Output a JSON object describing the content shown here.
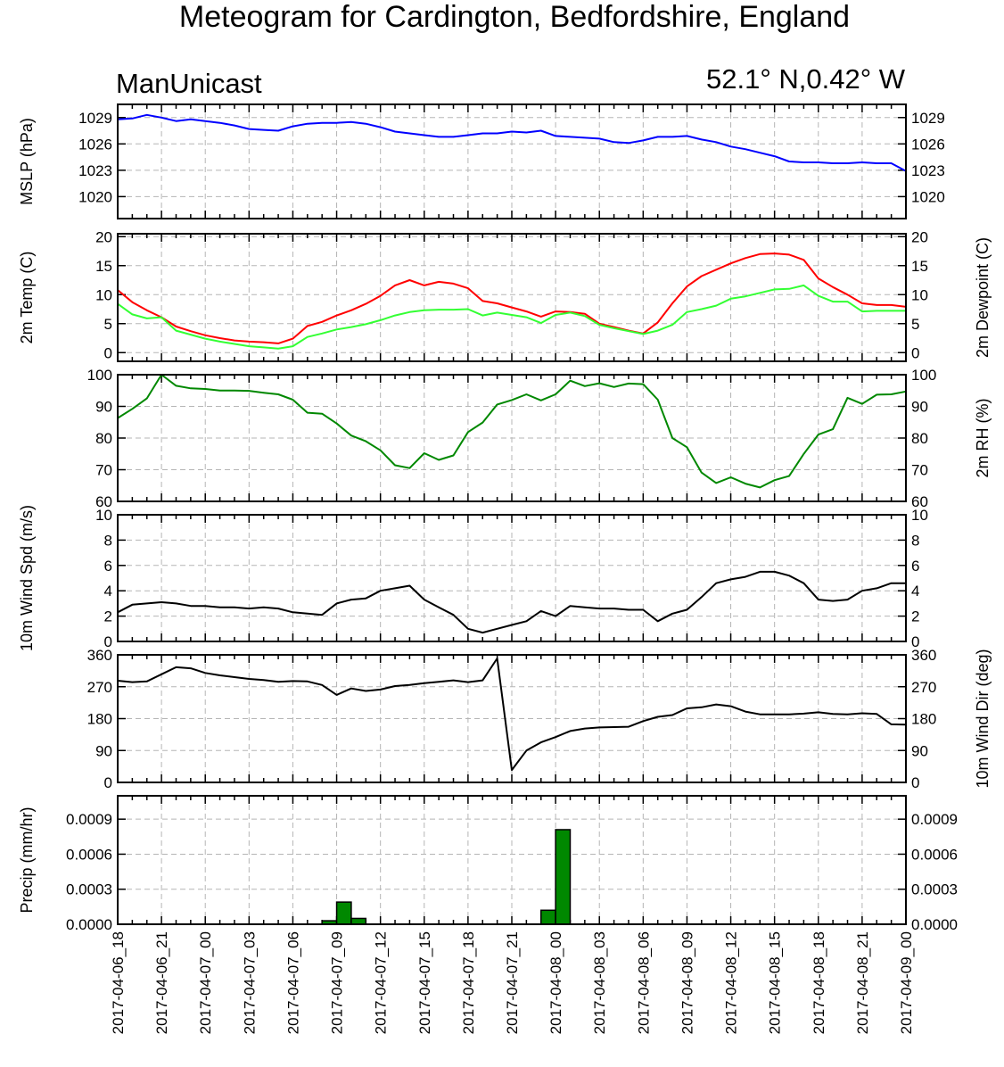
{
  "title": "Meteogram for Cardington, Bedfordshire, England",
  "model": "ManUnicast",
  "location": "52.1° N,0.42° W",
  "chart_data": {
    "type": "line",
    "x_tick_labels": [
      "2017-04-06_18",
      "2017-04-06_21",
      "2017-04-07_00",
      "2017-04-07_03",
      "2017-04-07_06",
      "2017-04-07_09",
      "2017-04-07_12",
      "2017-04-07_15",
      "2017-04-07_18",
      "2017-04-07_21",
      "2017-04-08_00",
      "2017-04-08_03",
      "2017-04-08_06",
      "2017-04-08_09",
      "2017-04-08_12",
      "2017-04-08_15",
      "2017-04-08_18",
      "2017-04-08_21",
      "2017-04-09_00"
    ],
    "x_hours": [
      0,
      1,
      2,
      3,
      4,
      5,
      6,
      7,
      8,
      9,
      10,
      11,
      12,
      13,
      14,
      15,
      16,
      17,
      18,
      19,
      20,
      21,
      22,
      23,
      24,
      25,
      26,
      27,
      28,
      29,
      30,
      31,
      32,
      33,
      34,
      35,
      36,
      37,
      38,
      39,
      40,
      41,
      42,
      43,
      44,
      45,
      46,
      47,
      48,
      49,
      50,
      51,
      52,
      53,
      54
    ],
    "panels": [
      {
        "id": "mslp",
        "type": "line",
        "ylabel_left": "MSLP (hPa)",
        "ylabel_right": "",
        "ylim": [
          1017.5,
          1030.5
        ],
        "yticks": [
          1020,
          1023,
          1026,
          1029
        ],
        "ytick_labels": [
          "1020",
          "1023",
          "1026",
          "1029"
        ],
        "ytick_labels_right": [
          "1020",
          "1023",
          "1026",
          "1029"
        ],
        "series": [
          {
            "color": "#0000ff",
            "values": [
              1028.8,
              1028.9,
              1029.3,
              1029.0,
              1028.6,
              1028.8,
              1028.6,
              1028.4,
              1028.1,
              1027.7,
              1027.6,
              1027.5,
              1028.0,
              1028.3,
              1028.4,
              1028.4,
              1028.5,
              1028.3,
              1027.9,
              1027.4,
              1027.2,
              1027.0,
              1026.8,
              1026.8,
              1027.0,
              1027.2,
              1027.2,
              1027.4,
              1027.3,
              1027.5,
              1026.9,
              1026.8,
              1026.7,
              1026.6,
              1026.2,
              1026.1,
              1026.4,
              1026.8,
              1026.8,
              1026.9,
              1026.5,
              1026.2,
              1025.7,
              1025.4,
              1025.0,
              1024.6,
              1024.0,
              1023.9,
              1023.9,
              1023.8,
              1023.8,
              1023.9,
              1023.8,
              1023.8,
              1022.9
            ]
          }
        ]
      },
      {
        "id": "temp",
        "type": "line",
        "ylabel_left": "2m Temp (C)",
        "ylabel_right": "2m Dewpoint (C)",
        "ylim": [
          -1.5,
          20.5
        ],
        "yticks": [
          0,
          5,
          10,
          15,
          20
        ],
        "ytick_labels": [
          "0",
          "5",
          "10",
          "15",
          "20"
        ],
        "ytick_labels_right": [
          "0",
          "5",
          "10",
          "15",
          "20"
        ],
        "series": [
          {
            "color": "#ff0000",
            "values": [
              10.8,
              8.7,
              7.3,
              6.1,
              4.5,
              3.7,
              3.0,
              2.5,
              2.1,
              1.9,
              1.8,
              1.6,
              2.4,
              4.6,
              5.3,
              6.4,
              7.3,
              8.4,
              9.8,
              11.6,
              12.5,
              11.6,
              12.2,
              11.9,
              11.1,
              8.9,
              8.5,
              7.8,
              7.1,
              6.2,
              7.1,
              7.0,
              6.7,
              5.0,
              4.4,
              3.8,
              3.3,
              5.2,
              8.5,
              11.4,
              13.2,
              14.3,
              15.4,
              16.3,
              17.0,
              17.1,
              16.9,
              16.0,
              12.8,
              11.3,
              10.0,
              8.5,
              8.2,
              8.2,
              7.9
            ]
          },
          {
            "color": "#33ff33",
            "values": [
              8.4,
              6.6,
              5.9,
              6.1,
              3.8,
              3.1,
              2.4,
              1.9,
              1.5,
              1.1,
              0.9,
              0.7,
              1.1,
              2.7,
              3.3,
              4.0,
              4.4,
              4.9,
              5.6,
              6.4,
              7.0,
              7.3,
              7.4,
              7.4,
              7.5,
              6.4,
              6.9,
              6.5,
              6.1,
              5.1,
              6.5,
              6.9,
              6.3,
              4.8,
              4.2,
              3.7,
              3.2,
              3.8,
              4.8,
              7.0,
              7.5,
              8.1,
              9.3,
              9.7,
              10.3,
              10.9,
              11.0,
              11.6,
              9.8,
              8.8,
              8.8,
              7.1,
              7.2,
              7.2,
              7.2
            ]
          }
        ]
      },
      {
        "id": "rh",
        "type": "line",
        "ylabel_left": "",
        "ylabel_right": "2m RH (%)",
        "ylim": [
          60,
          100
        ],
        "yticks": [
          60,
          70,
          80,
          90,
          100
        ],
        "ytick_labels": [
          "60",
          "70",
          "80",
          "90",
          "100"
        ],
        "ytick_labels_right": [
          "60",
          "70",
          "80",
          "90",
          "100"
        ],
        "series": [
          {
            "color": "#008800",
            "values": [
              86.3,
              89.2,
              92.5,
              100.0,
              96.5,
              95.7,
              95.5,
              95.0,
              95.0,
              94.9,
              94.3,
              93.8,
              92.1,
              88.0,
              87.7,
              84.6,
              80.8,
              79.0,
              76.1,
              71.4,
              70.5,
              75.2,
              73.1,
              74.5,
              81.9,
              84.9,
              90.6,
              92.0,
              93.8,
              91.9,
              93.8,
              98.1,
              96.4,
              97.3,
              96.1,
              97.2,
              97.0,
              92.1,
              80.0,
              77.1,
              69.1,
              65.8,
              67.6,
              65.6,
              64.4,
              66.7,
              68.0,
              75.0,
              81.1,
              82.8,
              92.7,
              90.8,
              93.7,
              93.8,
              94.7
            ]
          }
        ]
      },
      {
        "id": "wspd",
        "type": "line",
        "ylabel_left": "10m Wind Spd (m/s)",
        "ylabel_right": "",
        "ylim": [
          0,
          10
        ],
        "yticks": [
          0,
          2,
          4,
          6,
          8,
          10
        ],
        "ytick_labels": [
          "0",
          "2",
          "4",
          "6",
          "8",
          "10"
        ],
        "ytick_labels_right": [
          "0",
          "2",
          "4",
          "6",
          "8",
          "10"
        ],
        "series": [
          {
            "color": "#000000",
            "values": [
              2.3,
              2.9,
              3.0,
              3.1,
              3.0,
              2.8,
              2.8,
              2.7,
              2.7,
              2.6,
              2.7,
              2.6,
              2.3,
              2.2,
              2.1,
              3.0,
              3.3,
              3.4,
              4.0,
              4.2,
              4.4,
              3.3,
              2.7,
              2.1,
              1.0,
              0.7,
              1.0,
              1.3,
              1.6,
              2.4,
              2.0,
              2.8,
              2.7,
              2.6,
              2.6,
              2.5,
              2.5,
              1.6,
              2.2,
              2.5,
              3.5,
              4.6,
              4.9,
              5.1,
              5.5,
              5.5,
              5.2,
              4.6,
              3.3,
              3.2,
              3.3,
              4.0,
              4.2,
              4.6,
              4.6
            ]
          }
        ]
      },
      {
        "id": "wdir",
        "type": "line",
        "ylabel_left": "",
        "ylabel_right": "10m Wind Dir (deg)",
        "ylim": [
          0,
          360
        ],
        "yticks": [
          0,
          90,
          180,
          270,
          360
        ],
        "ytick_labels": [
          "0",
          "90",
          "180",
          "270",
          "360"
        ],
        "ytick_labels_right": [
          "0",
          "90",
          "180",
          "270",
          "360"
        ],
        "series": [
          {
            "color": "#000000",
            "values": [
              287,
              283,
              285,
              305,
              325,
              322,
              309,
              302,
              297,
              292,
              289,
              284,
              286,
              285,
              275,
              247,
              265,
              258,
              262,
              272,
              275,
              280,
              284,
              288,
              283,
              288,
              350,
              35,
              90,
              113,
              128,
              145,
              152,
              155,
              156,
              157,
              173,
              185,
              190,
              209,
              212,
              220,
              215,
              200,
              192,
              192,
              192,
              194,
              198,
              193,
              192,
              195,
              193,
              164,
              163
            ]
          }
        ]
      },
      {
        "id": "precip",
        "type": "bar",
        "ylabel_left": "Precip (mm/hr)",
        "ylabel_right": "",
        "ylim": [
          0,
          0.0011
        ],
        "yticks": [
          0.0,
          0.0003,
          0.0006,
          0.0009
        ],
        "ytick_labels": [
          "0.0000",
          "0.0003",
          "0.0006",
          "0.0009"
        ],
        "ytick_labels_right": [
          "0.0000",
          "0.0003",
          "0.0006",
          "0.0009"
        ],
        "bar_color": "#008800",
        "bars": [
          {
            "hour": 14.5,
            "value": 3e-05
          },
          {
            "hour": 15.5,
            "value": 0.00019
          },
          {
            "hour": 16.5,
            "value": 5e-05
          },
          {
            "hour": 29.5,
            "value": 0.00012
          },
          {
            "hour": 30.5,
            "value": 0.00081
          }
        ]
      }
    ]
  }
}
